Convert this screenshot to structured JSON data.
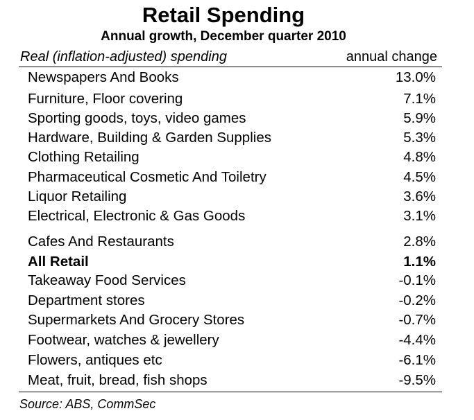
{
  "chart_data": {
    "type": "table",
    "title": "Retail Spending",
    "subtitle": "Annual growth, December quarter 2010",
    "column_headers": [
      "Real (inflation-adjusted) spending",
      "annual change"
    ],
    "rows": [
      {
        "category": "Newspapers And Books",
        "value": 13.0,
        "display": "13.0%",
        "bold": false
      },
      {
        "category": "Furniture, Floor covering",
        "value": 7.1,
        "display": "7.1%",
        "bold": false
      },
      {
        "category": "Sporting goods, toys, video games",
        "value": 5.9,
        "display": "5.9%",
        "bold": false
      },
      {
        "category": "Hardware, Building & Garden Supplies",
        "value": 5.3,
        "display": "5.3%",
        "bold": false
      },
      {
        "category": "Clothing Retailing",
        "value": 4.8,
        "display": "4.8%",
        "bold": false
      },
      {
        "category": "Pharmaceutical Cosmetic And Toiletry",
        "value": 4.5,
        "display": "4.5%",
        "bold": false
      },
      {
        "category": "Liquor Retailing",
        "value": 3.6,
        "display": "3.6%",
        "bold": false
      },
      {
        "category": "Electrical, Electronic & Gas Goods",
        "value": 3.1,
        "display": "3.1%",
        "bold": false
      },
      {
        "category": "Cafes And Restaurants",
        "value": 2.8,
        "display": "2.8%",
        "bold": false
      },
      {
        "category": "All Retail",
        "value": 1.1,
        "display": "1.1%",
        "bold": true
      },
      {
        "category": "Takeaway Food Services",
        "value": -0.1,
        "display": "-0.1%",
        "bold": false
      },
      {
        "category": "Department stores",
        "value": -0.2,
        "display": "-0.2%",
        "bold": false
      },
      {
        "category": "Supermarkets And Grocery Stores",
        "value": -0.7,
        "display": "-0.7%",
        "bold": false
      },
      {
        "category": "Footwear, watches & jewellery",
        "value": -4.4,
        "display": "-4.4%",
        "bold": false
      },
      {
        "category": "Flowers, antiques etc",
        "value": -6.1,
        "display": "-6.1%",
        "bold": false
      },
      {
        "category": "Meat, fruit, bread, fish shops",
        "value": -9.5,
        "display": "-9.5%",
        "bold": false
      }
    ],
    "source": "Source: ABS, CommSec"
  }
}
